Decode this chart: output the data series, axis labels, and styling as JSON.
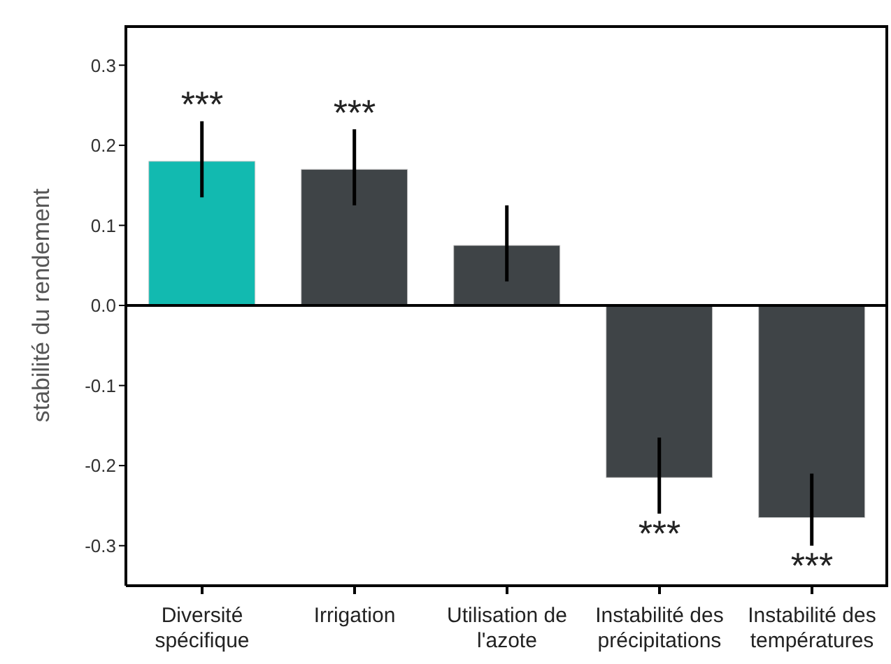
{
  "chart_data": {
    "type": "bar",
    "ylabel": "stabilité du rendement",
    "categories": [
      "Diversité spécifique",
      "Irrigation",
      "Utilisation de l'azote",
      "Instabilité des précipitations",
      "Instabilité des températures"
    ],
    "values": [
      0.18,
      0.17,
      0.075,
      -0.215,
      -0.265
    ],
    "colors": [
      "#12bab0",
      "#3f4447",
      "#3f4447",
      "#3f4447",
      "#3f4447"
    ],
    "errors": [
      [
        0.135,
        0.23
      ],
      [
        0.125,
        0.22
      ],
      [
        0.03,
        0.125
      ],
      [
        -0.26,
        -0.165
      ],
      [
        -0.3,
        -0.21
      ]
    ],
    "ylim": [
      -0.35,
      0.35
    ],
    "yticks": [
      0.3,
      0.2,
      0.1,
      {
        "value": 0,
        "label": "0.0"
      },
      -0.1,
      -0.2,
      -0.3
    ],
    "ref_lines": [
      {
        "axis": "y",
        "value": 0
      }
    ],
    "value_labels": [
      "***",
      "***",
      null,
      "***",
      "***"
    ],
    "grid": false,
    "legend": false
  }
}
